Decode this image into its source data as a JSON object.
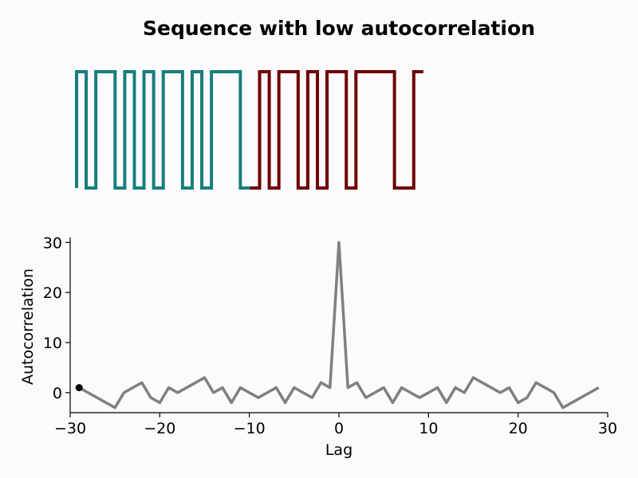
{
  "chart_data": [
    {
      "type": "line",
      "subtype": "sequence-waveform",
      "title": "Sequence with low autocorrelation",
      "bits": [
        1,
        0,
        1,
        1,
        0,
        1,
        0,
        1,
        0,
        1,
        1,
        0,
        1,
        0,
        1,
        1,
        1,
        0,
        0,
        1,
        0,
        1,
        1,
        0,
        1,
        0,
        1,
        1,
        0,
        1,
        1,
        1,
        1,
        0,
        0,
        1
      ],
      "split_index": 18,
      "series": [
        {
          "color": "#157f7d"
        },
        {
          "color": "#6e0000"
        }
      ],
      "grid": false
    },
    {
      "type": "line",
      "title": "",
      "xlabel": "Lag",
      "ylabel": "Autocorrelation",
      "x": [
        -29,
        -28,
        -27,
        -26,
        -25,
        -24,
        -23,
        -22,
        -21,
        -20,
        -19,
        -18,
        -17,
        -16,
        -15,
        -14,
        -13,
        -12,
        -11,
        -10,
        -9,
        -8,
        -7,
        -6,
        -5,
        -4,
        -3,
        -2,
        -1,
        0,
        1,
        2,
        3,
        4,
        5,
        6,
        7,
        8,
        9,
        10,
        11,
        12,
        13,
        14,
        15,
        16,
        17,
        18,
        19,
        20,
        21,
        22,
        23,
        24,
        25,
        26,
        27,
        28,
        29
      ],
      "y": [
        1,
        0,
        -1,
        -2,
        -3,
        0,
        1,
        2,
        -1,
        -2,
        1,
        0,
        1,
        2,
        3,
        0,
        1,
        -2,
        1,
        0,
        -1,
        0,
        1,
        -2,
        1,
        0,
        -1,
        2,
        1,
        30,
        1,
        2,
        -1,
        0,
        1,
        -2,
        1,
        0,
        -1,
        0,
        1,
        -2,
        1,
        0,
        3,
        2,
        1,
        0,
        1,
        -2,
        -1,
        2,
        1,
        0,
        -3,
        -2,
        -1,
        0,
        1
      ],
      "xlim": [
        -30,
        30
      ],
      "ylim": [
        -4,
        31
      ],
      "xticks": [
        "−30",
        "−20",
        "−10",
        "0",
        "10",
        "20",
        "30"
      ],
      "yticks": [
        "0",
        "10",
        "20",
        "30"
      ],
      "line_color": "#808080",
      "marker": {
        "x": -29,
        "y": 1,
        "color": "#000000"
      },
      "grid": false
    }
  ]
}
